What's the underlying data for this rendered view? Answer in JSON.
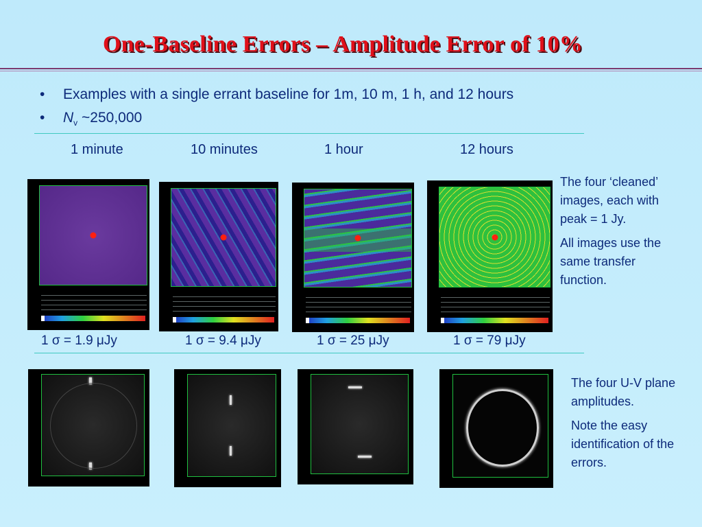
{
  "title": "One-Baseline Errors – Amplitude Error of 10%",
  "bullets": [
    "Examples with a single errant baseline for 1m, 10 m, 1 h, and 12 hours",
    "~250,000"
  ],
  "nv_symbol": "N",
  "nv_sub": "v",
  "time_labels": [
    "1 minute",
    "10 minutes",
    "1 hour",
    "12 hours"
  ],
  "sigma_labels": [
    "1 σ = 1.9 μJy",
    "1 σ = 9.4 μJy",
    "1 σ = 25 μJy",
    "1 σ = 79 μJy"
  ],
  "note_top": [
    "The four ‘cleaned’ images, each with peak = 1 Jy.",
    "All images use the same transfer function."
  ],
  "note_bottom": [
    "The four U-V plane amplitudes.",
    "Note the easy identification of the errors."
  ]
}
